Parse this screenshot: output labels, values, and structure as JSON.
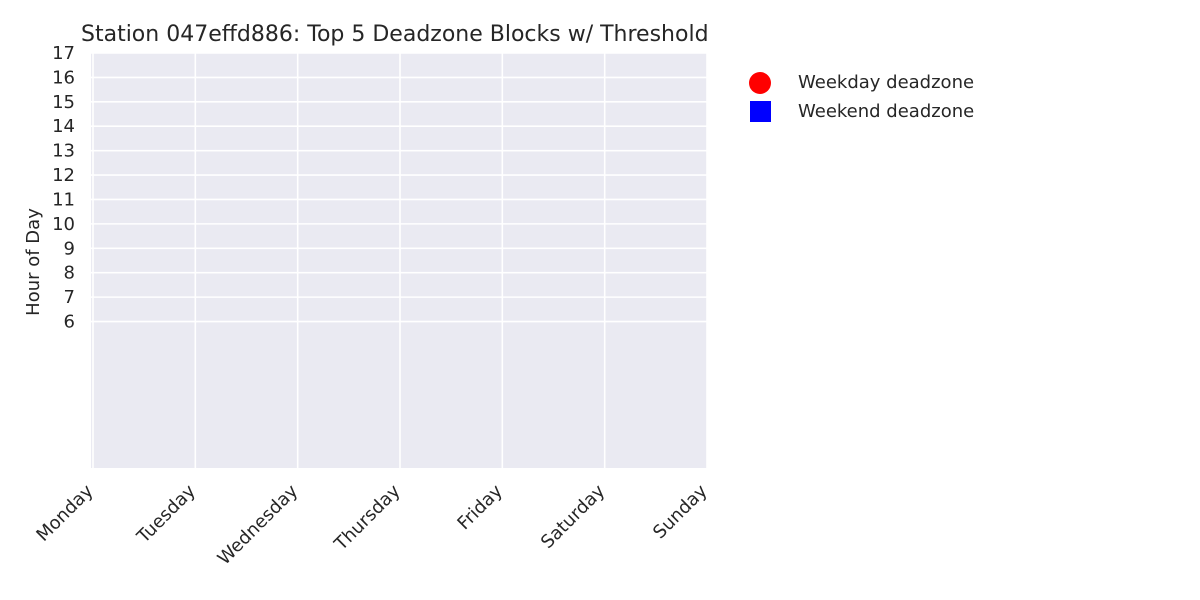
{
  "chart_data": {
    "type": "scatter",
    "title": "Station 047effd886: Top 5 Deadzone Blocks w/ Threshold",
    "xlabel": "",
    "ylabel": "Hour of Day",
    "categories": [
      "Monday",
      "Tuesday",
      "Wednesday",
      "Thursday",
      "Friday",
      "Saturday",
      "Sunday"
    ],
    "y_ticks": [
      6,
      7,
      8,
      9,
      10,
      11,
      12,
      13,
      14,
      15,
      16,
      17
    ],
    "ylim": [
      0,
      17
    ],
    "grid": true,
    "legend_position": "outside-right",
    "series": [
      {
        "name": "Weekday deadzone",
        "marker": "circle",
        "color": "#ff0000",
        "points": []
      },
      {
        "name": "Weekend deadzone",
        "marker": "square",
        "color": "#0000ff",
        "points": []
      }
    ],
    "colors": {
      "plot_background": "#eaeaf2",
      "grid": "#ffffff",
      "text": "#262626"
    }
  }
}
